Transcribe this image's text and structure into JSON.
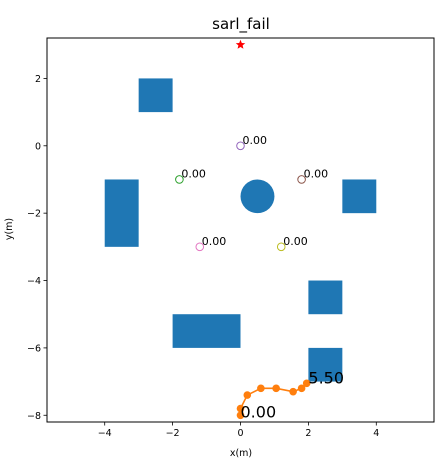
{
  "chart_data": {
    "type": "scatter",
    "title": "sarl_fail",
    "xlabel": "x(m)",
    "ylabel": "y(m)",
    "xlim": [
      -5.7,
      5.7
    ],
    "ylim": [
      -8.2,
      3.2
    ],
    "aspect": "equal",
    "grid": false,
    "xticks": [
      -4,
      -2,
      0,
      2,
      4
    ],
    "xtick_labels": [
      "−4",
      "−2",
      "0",
      "2",
      "4"
    ],
    "yticks": [
      2,
      0,
      -2,
      -4,
      -6,
      -8
    ],
    "ytick_labels": [
      "2",
      "0",
      "−2",
      "−4",
      "−6",
      "−8"
    ],
    "obstacle_color": "#1f77b4",
    "obstacles": [
      {
        "shape": "rect",
        "x": -3.0,
        "y": 1.0,
        "width": 1.0,
        "height": 1.0
      },
      {
        "shape": "rect",
        "x": -4.0,
        "y": -3.0,
        "width": 1.0,
        "height": 2.0
      },
      {
        "shape": "rect",
        "x": 3.0,
        "y": -2.0,
        "width": 1.0,
        "height": 1.0
      },
      {
        "shape": "rect",
        "x": 2.0,
        "y": -5.0,
        "width": 1.0,
        "height": 1.0
      },
      {
        "shape": "rect",
        "x": -2.0,
        "y": -6.0,
        "width": 2.0,
        "height": 1.0
      },
      {
        "shape": "rect",
        "x": 2.0,
        "y": -7.0,
        "width": 1.0,
        "height": 1.0
      },
      {
        "shape": "circle",
        "x": 0.5,
        "y": -1.5,
        "r": 0.5
      }
    ],
    "goal": {
      "x": 0.0,
      "y": 3.0,
      "color": "#ff0000",
      "marker": "star"
    },
    "humans": [
      {
        "x": 0.0,
        "y": 0.0,
        "color": "#9467bd",
        "label": "0.00"
      },
      {
        "x": -1.8,
        "y": -1.0,
        "color": "#2ca02c",
        "label": "0.00"
      },
      {
        "x": 1.8,
        "y": -1.0,
        "color": "#8c564b",
        "label": "0.00"
      },
      {
        "x": -1.2,
        "y": -3.0,
        "color": "#e377c2",
        "label": "0.00"
      },
      {
        "x": 1.2,
        "y": -3.0,
        "color": "#bcbd22",
        "label": "0.00"
      }
    ],
    "robot_path": {
      "color": "#ff7f0e",
      "x": [
        0.0,
        0.0,
        0.2,
        0.6,
        1.05,
        1.55,
        1.8,
        1.95
      ],
      "y": [
        -8.0,
        -7.8,
        -7.4,
        -7.2,
        -7.2,
        -7.3,
        -7.2,
        -7.05
      ]
    },
    "annotations": [
      {
        "text": "0.00",
        "x": 0.0,
        "y": -8.0
      },
      {
        "text": "5.50",
        "x": 2.0,
        "y": -7.0
      }
    ]
  }
}
